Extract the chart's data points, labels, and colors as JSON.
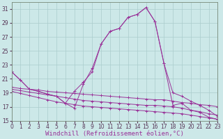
{
  "bg_color": "#cce8e8",
  "line_color": "#993399",
  "grid_color": "#aacccc",
  "xlabel": "Windchill (Refroidissement éolien,°C)",
  "xlabel_fontsize": 6.5,
  "tick_fontsize": 5.5,
  "ylim": [
    15,
    32
  ],
  "xlim": [
    0,
    23
  ],
  "yticks": [
    15,
    17,
    19,
    21,
    23,
    25,
    27,
    29,
    31
  ],
  "xticks": [
    0,
    1,
    2,
    3,
    4,
    5,
    6,
    7,
    8,
    9,
    10,
    11,
    12,
    13,
    14,
    15,
    16,
    17,
    18,
    19,
    20,
    21,
    22,
    23
  ],
  "series": [
    {
      "x": [
        0,
        1,
        2,
        3,
        4,
        5,
        6,
        7,
        8,
        9,
        10,
        11,
        12,
        13,
        14,
        15,
        16,
        17,
        18,
        19,
        20,
        21,
        22,
        23
      ],
      "y": [
        22.0,
        20.8,
        19.5,
        19.2,
        18.8,
        18.5,
        17.5,
        16.8,
        20.2,
        22.5,
        26.0,
        27.8,
        28.2,
        29.8,
        30.2,
        31.2,
        29.2,
        23.2,
        17.2,
        17.5,
        16.5,
        16.2,
        15.5,
        15.2
      ]
    },
    {
      "x": [
        0,
        1,
        2,
        3,
        4,
        5,
        6,
        7,
        8,
        9,
        10,
        11,
        12,
        13,
        14,
        15,
        16,
        17,
        18,
        19,
        20,
        21,
        22,
        23
      ],
      "y": [
        22.0,
        20.8,
        19.5,
        19.2,
        18.8,
        18.5,
        17.5,
        19.2,
        20.5,
        22.0,
        26.0,
        27.8,
        28.2,
        29.8,
        30.2,
        31.2,
        29.2,
        23.2,
        19.0,
        18.5,
        17.8,
        17.2,
        16.5,
        15.6
      ]
    },
    {
      "x": [
        0,
        1,
        2,
        3,
        4,
        5,
        6,
        7,
        8,
        9,
        10,
        11,
        12,
        13,
        14,
        15,
        16,
        17,
        18,
        19,
        20,
        21,
        22,
        23
      ],
      "y": [
        19.8,
        19.6,
        19.5,
        19.4,
        19.2,
        19.1,
        19.0,
        18.9,
        18.8,
        18.7,
        18.6,
        18.5,
        18.4,
        18.3,
        18.2,
        18.1,
        18.0,
        18.0,
        17.8,
        17.6,
        17.5,
        17.3,
        17.2,
        17.0
      ]
    },
    {
      "x": [
        0,
        1,
        2,
        3,
        4,
        5,
        6,
        7,
        8,
        9,
        10,
        11,
        12,
        13,
        14,
        15,
        16,
        17,
        18,
        19,
        20,
        21,
        22,
        23
      ],
      "y": [
        19.5,
        19.3,
        19.1,
        18.9,
        18.7,
        18.5,
        18.3,
        18.1,
        17.9,
        17.8,
        17.7,
        17.6,
        17.5,
        17.4,
        17.3,
        17.2,
        17.2,
        17.1,
        17.0,
        16.8,
        16.5,
        16.3,
        16.0,
        15.8
      ]
    },
    {
      "x": [
        0,
        1,
        2,
        3,
        4,
        5,
        6,
        7,
        8,
        9,
        10,
        11,
        12,
        13,
        14,
        15,
        16,
        17,
        18,
        19,
        20,
        21,
        22,
        23
      ],
      "y": [
        19.2,
        18.9,
        18.6,
        18.3,
        18.0,
        17.7,
        17.5,
        17.3,
        17.1,
        17.0,
        16.9,
        16.8,
        16.7,
        16.6,
        16.5,
        16.4,
        16.3,
        16.2,
        16.1,
        16.0,
        15.8,
        15.6,
        15.4,
        15.2
      ]
    }
  ]
}
